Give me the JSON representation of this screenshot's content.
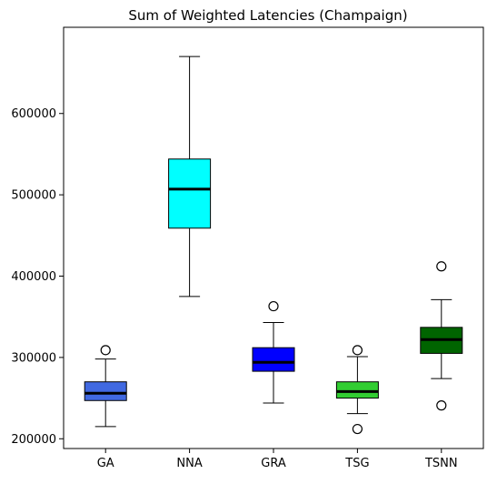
{
  "chart_data": {
    "type": "box",
    "title": "Sum of Weighted Latencies (Champaign)",
    "xlabel": "",
    "ylabel": "",
    "ylim": [
      188000,
      706000
    ],
    "yticks": [
      200000,
      300000,
      400000,
      500000,
      600000
    ],
    "ytick_labels": [
      "200000",
      "300000",
      "400000",
      "500000",
      "600000"
    ],
    "grid": false,
    "categories": [
      "GA",
      "NNA",
      "GRA",
      "TSG",
      "TSNN"
    ],
    "boxes": [
      {
        "label": "GA",
        "color": "#4169e1",
        "whisker_low": 215000,
        "q1": 247000,
        "median": 256000,
        "q3": 270000,
        "whisker_high": 298000,
        "outliers": [
          309000
        ]
      },
      {
        "label": "NNA",
        "color": "#00ffff",
        "whisker_low": 375000,
        "q1": 459000,
        "median": 507000,
        "q3": 544000,
        "whisker_high": 670000,
        "outliers": []
      },
      {
        "label": "GRA",
        "color": "#0000ff",
        "whisker_low": 244000,
        "q1": 283000,
        "median": 294000,
        "q3": 312000,
        "whisker_high": 343000,
        "outliers": [
          363000
        ]
      },
      {
        "label": "TSG",
        "color": "#32cd32",
        "whisker_low": 231000,
        "q1": 250000,
        "median": 258000,
        "q3": 270000,
        "whisker_high": 301000,
        "outliers": [
          309000,
          212000
        ]
      },
      {
        "label": "TSNN",
        "color": "#006400",
        "whisker_low": 274000,
        "q1": 305000,
        "median": 322000,
        "q3": 337000,
        "whisker_high": 371000,
        "outliers": [
          412000,
          241000
        ]
      }
    ]
  }
}
